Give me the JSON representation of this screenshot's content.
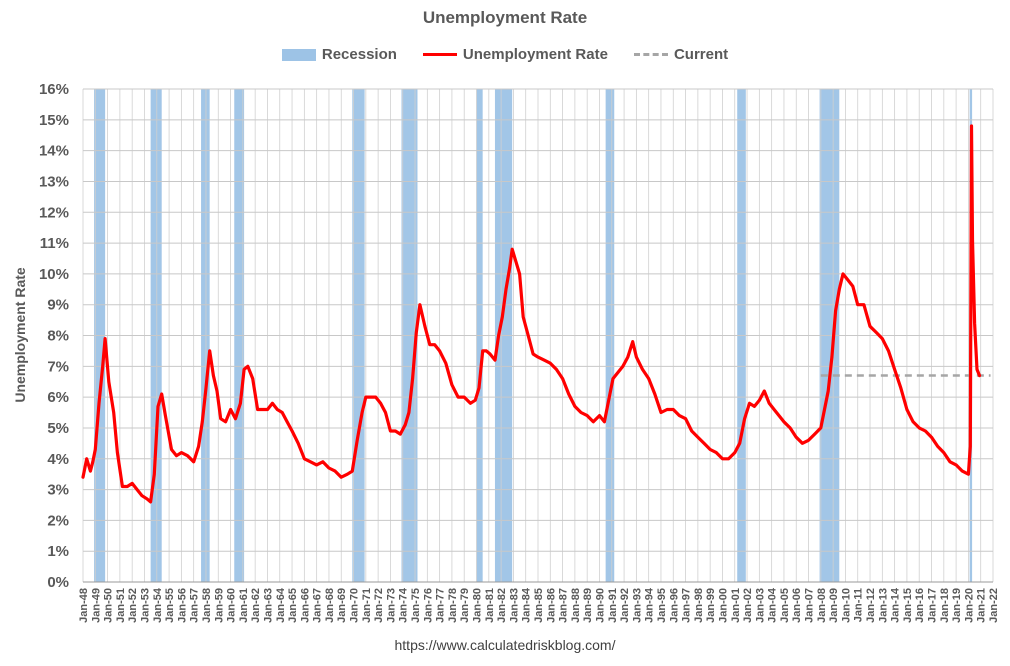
{
  "chart_data": {
    "type": "line",
    "title": "Unemployment Rate",
    "ylabel": "Unemployment Rate",
    "xlabel": "",
    "ylim": [
      0,
      16
    ],
    "y_ticks": [
      "0%",
      "1%",
      "2%",
      "3%",
      "4%",
      "5%",
      "6%",
      "7%",
      "8%",
      "9%",
      "10%",
      "11%",
      "12%",
      "13%",
      "14%",
      "15%",
      "16%"
    ],
    "x_ticks": [
      "Jan-48",
      "Jan-49",
      "Jan-50",
      "Jan-51",
      "Jan-52",
      "Jan-53",
      "Jan-54",
      "Jan-55",
      "Jan-56",
      "Jan-57",
      "Jan-58",
      "Jan-59",
      "Jan-60",
      "Jan-61",
      "Jan-62",
      "Jan-63",
      "Jan-64",
      "Jan-65",
      "Jan-66",
      "Jan-67",
      "Jan-68",
      "Jan-69",
      "Jan-70",
      "Jan-71",
      "Jan-72",
      "Jan-73",
      "Jan-74",
      "Jan-75",
      "Jan-76",
      "Jan-77",
      "Jan-78",
      "Jan-79",
      "Jan-80",
      "Jan-81",
      "Jan-82",
      "Jan-83",
      "Jan-84",
      "Jan-85",
      "Jan-86",
      "Jan-87",
      "Jan-88",
      "Jan-89",
      "Jan-90",
      "Jan-91",
      "Jan-92",
      "Jan-93",
      "Jan-94",
      "Jan-95",
      "Jan-96",
      "Jan-97",
      "Jan-98",
      "Jan-99",
      "Jan-00",
      "Jan-01",
      "Jan-02",
      "Jan-03",
      "Jan-04",
      "Jan-05",
      "Jan-06",
      "Jan-07",
      "Jan-08",
      "Jan-09",
      "Jan-10",
      "Jan-11",
      "Jan-12",
      "Jan-13",
      "Jan-14",
      "Jan-15",
      "Jan-16",
      "Jan-17",
      "Jan-18",
      "Jan-19",
      "Jan-20",
      "Jan-21",
      "Jan-22"
    ],
    "grid": true,
    "legend_position": "top",
    "legend": [
      {
        "label": "Recession",
        "kind": "band",
        "color": "#9dc3e6"
      },
      {
        "label": "Unemployment Rate",
        "kind": "line",
        "color": "#ff0000"
      },
      {
        "label": "Current",
        "kind": "dashed",
        "color": "#a6a6a6"
      }
    ],
    "recessions": [
      [
        1948.9,
        1949.8
      ],
      [
        1953.5,
        1954.4
      ],
      [
        1957.6,
        1958.3
      ],
      [
        1960.3,
        1961.1
      ],
      [
        1969.9,
        1970.9
      ],
      [
        1973.9,
        1975.2
      ],
      [
        1980.0,
        1980.5
      ],
      [
        1981.5,
        1982.9
      ],
      [
        1990.5,
        1991.2
      ],
      [
        2001.2,
        2001.9
      ],
      [
        2007.9,
        2009.5
      ],
      [
        2020.1,
        2020.3
      ]
    ],
    "series": [
      {
        "name": "Unemployment Rate",
        "color": "#ff0000",
        "x": [
          1948.0,
          1948.3,
          1948.6,
          1948.8,
          1949.0,
          1949.3,
          1949.6,
          1949.8,
          1950.1,
          1950.5,
          1950.8,
          1951.2,
          1951.6,
          1952.0,
          1952.4,
          1952.8,
          1953.2,
          1953.5,
          1953.8,
          1954.1,
          1954.4,
          1954.7,
          1955.2,
          1955.6,
          1956.0,
          1956.5,
          1957.0,
          1957.4,
          1957.7,
          1958.0,
          1958.3,
          1958.6,
          1958.9,
          1959.2,
          1959.6,
          1960.0,
          1960.4,
          1960.8,
          1961.1,
          1961.4,
          1961.8,
          1962.2,
          1962.6,
          1963.0,
          1963.4,
          1963.8,
          1964.2,
          1964.6,
          1965.0,
          1965.5,
          1966.0,
          1966.5,
          1967.0,
          1967.5,
          1968.0,
          1968.5,
          1969.0,
          1969.5,
          1969.9,
          1970.3,
          1970.7,
          1971.0,
          1971.4,
          1971.8,
          1972.2,
          1972.6,
          1973.0,
          1973.4,
          1973.8,
          1974.2,
          1974.5,
          1974.8,
          1975.1,
          1975.4,
          1975.8,
          1976.2,
          1976.6,
          1977.0,
          1977.5,
          1978.0,
          1978.5,
          1979.0,
          1979.5,
          1979.9,
          1980.2,
          1980.5,
          1980.8,
          1981.1,
          1981.5,
          1981.8,
          1982.1,
          1982.4,
          1982.7,
          1982.9,
          1983.2,
          1983.5,
          1983.8,
          1984.2,
          1984.6,
          1985.0,
          1985.5,
          1986.0,
          1986.5,
          1987.0,
          1987.5,
          1988.0,
          1988.5,
          1989.0,
          1989.5,
          1990.0,
          1990.4,
          1990.8,
          1991.1,
          1991.5,
          1991.9,
          1992.3,
          1992.7,
          1993.0,
          1993.5,
          1994.0,
          1994.5,
          1995.0,
          1995.5,
          1996.0,
          1996.5,
          1997.0,
          1997.5,
          1998.0,
          1998.5,
          1999.0,
          1999.5,
          2000.0,
          2000.5,
          2001.0,
          2001.4,
          2001.8,
          2002.2,
          2002.6,
          2003.0,
          2003.4,
          2003.8,
          2004.2,
          2004.6,
          2005.0,
          2005.5,
          2006.0,
          2006.5,
          2007.0,
          2007.5,
          2008.0,
          2008.3,
          2008.6,
          2008.9,
          2009.2,
          2009.5,
          2009.8,
          2010.2,
          2010.6,
          2011.0,
          2011.5,
          2012.0,
          2012.5,
          2013.0,
          2013.5,
          2014.0,
          2014.5,
          2015.0,
          2015.5,
          2016.0,
          2016.5,
          2017.0,
          2017.5,
          2018.0,
          2018.5,
          2019.0,
          2019.5,
          2020.0,
          2020.15,
          2020.25,
          2020.33,
          2020.5,
          2020.7,
          2020.9
        ],
        "values": [
          3.4,
          4.0,
          3.6,
          3.9,
          4.3,
          5.8,
          7.0,
          7.9,
          6.5,
          5.5,
          4.2,
          3.1,
          3.1,
          3.2,
          3.0,
          2.8,
          2.7,
          2.6,
          3.5,
          5.7,
          6.1,
          5.4,
          4.3,
          4.1,
          4.2,
          4.1,
          3.9,
          4.4,
          5.2,
          6.3,
          7.5,
          6.7,
          6.2,
          5.3,
          5.2,
          5.6,
          5.3,
          5.8,
          6.9,
          7.0,
          6.6,
          5.6,
          5.6,
          5.6,
          5.8,
          5.6,
          5.5,
          5.2,
          4.9,
          4.5,
          4.0,
          3.9,
          3.8,
          3.9,
          3.7,
          3.6,
          3.4,
          3.5,
          3.6,
          4.6,
          5.5,
          6.0,
          6.0,
          6.0,
          5.8,
          5.5,
          4.9,
          4.9,
          4.8,
          5.1,
          5.5,
          6.6,
          8.1,
          9.0,
          8.3,
          7.7,
          7.7,
          7.5,
          7.1,
          6.4,
          6.0,
          6.0,
          5.8,
          5.9,
          6.3,
          7.5,
          7.5,
          7.4,
          7.2,
          8.0,
          8.6,
          9.5,
          10.2,
          10.8,
          10.4,
          10.0,
          8.6,
          8.0,
          7.4,
          7.3,
          7.2,
          7.1,
          6.9,
          6.6,
          6.1,
          5.7,
          5.5,
          5.4,
          5.2,
          5.4,
          5.2,
          6.0,
          6.6,
          6.8,
          7.0,
          7.3,
          7.8,
          7.3,
          6.9,
          6.6,
          6.1,
          5.5,
          5.6,
          5.6,
          5.4,
          5.3,
          4.9,
          4.7,
          4.5,
          4.3,
          4.2,
          4.0,
          4.0,
          4.2,
          4.5,
          5.3,
          5.8,
          5.7,
          5.9,
          6.2,
          5.8,
          5.6,
          5.4,
          5.2,
          5.0,
          4.7,
          4.5,
          4.6,
          4.8,
          5.0,
          5.6,
          6.2,
          7.3,
          8.8,
          9.5,
          10.0,
          9.8,
          9.6,
          9.0,
          9.0,
          8.3,
          8.1,
          7.9,
          7.5,
          6.9,
          6.3,
          5.6,
          5.2,
          5.0,
          4.9,
          4.7,
          4.4,
          4.2,
          3.9,
          3.8,
          3.6,
          3.5,
          4.4,
          14.8,
          11.1,
          8.4,
          6.9,
          6.7
        ]
      }
    ],
    "current": {
      "label": "Current",
      "value": 6.7,
      "from": 2008.0,
      "to": 2021.8
    }
  },
  "footer": {
    "source": "https://www.calculatedriskblog.com/"
  }
}
